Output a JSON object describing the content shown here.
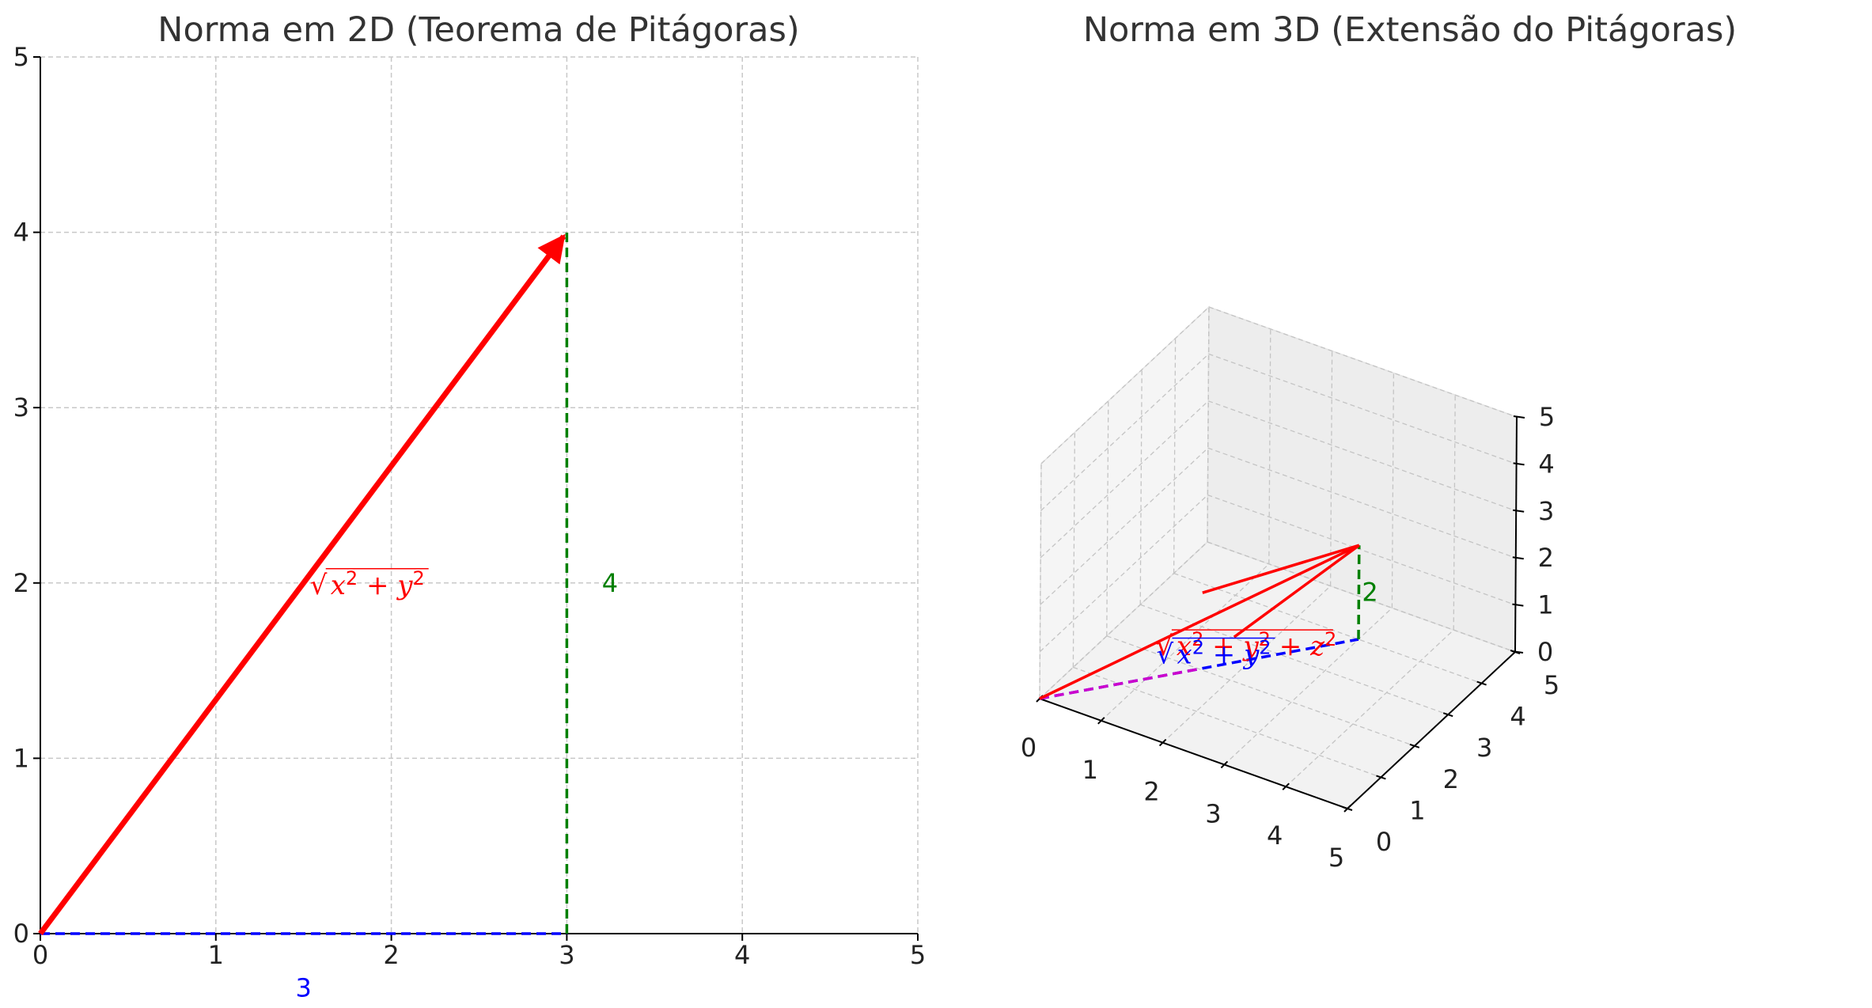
{
  "chart_data": [
    {
      "type": "line",
      "title": "Norma em 2D (Teorema de Pitágoras)",
      "xlim": [
        0,
        5
      ],
      "ylim": [
        0,
        5
      ],
      "xticks": [
        "0",
        "1",
        "2",
        "3",
        "4",
        "5"
      ],
      "yticks": [
        "0",
        "1",
        "2",
        "3",
        "4",
        "5"
      ],
      "grid": true,
      "vector": {
        "from": [
          0,
          0
        ],
        "to": [
          3,
          4
        ],
        "color": "#ff0000"
      },
      "dashed_lines": [
        {
          "from": [
            0,
            0
          ],
          "to": [
            3,
            0
          ],
          "color": "#0000ff"
        },
        {
          "from": [
            3,
            0
          ],
          "to": [
            3,
            4
          ],
          "color": "#008000"
        }
      ],
      "annotations": [
        {
          "text": "3",
          "x": 1.5,
          "y": -0.25,
          "color": "#0000ff"
        },
        {
          "text": "4",
          "x": 3.2,
          "y": 2.0,
          "color": "#008000"
        },
        {
          "text": "√(x² + y²)",
          "x": 1.5,
          "y": 2.0,
          "color": "#ff0000"
        }
      ]
    },
    {
      "type": "line3d",
      "title": "Norma em 3D (Extensão do Pitágoras)",
      "xlim": [
        0,
        5
      ],
      "ylim": [
        0,
        5
      ],
      "zlim": [
        0,
        5
      ],
      "xticks": [
        "0",
        "1",
        "2",
        "3",
        "4",
        "5"
      ],
      "yticks": [
        "0",
        "1",
        "2",
        "3",
        "4",
        "5"
      ],
      "zticks": [
        "0",
        "1",
        "2",
        "3",
        "4",
        "5"
      ],
      "grid": true,
      "vector": {
        "from": [
          0,
          0,
          0
        ],
        "to": [
          3,
          4,
          2
        ],
        "color": "#ff0000"
      },
      "dashed_lines": [
        {
          "from": [
            0,
            0,
            0
          ],
          "to": [
            3,
            4,
            0
          ],
          "color": "#0000ff"
        },
        {
          "from": [
            3,
            4,
            0
          ],
          "to": [
            3,
            4,
            2
          ],
          "color": "#008000"
        },
        {
          "from": [
            0,
            0,
            0
          ],
          "to": [
            1.5,
            2,
            0
          ],
          "color": "#cc00cc"
        }
      ],
      "annotations": [
        {
          "text": "2",
          "color": "#008000"
        },
        {
          "text": "√(x² + y² + z²)",
          "color": "#ff0000"
        },
        {
          "text": "√(x² + y²)",
          "color": "#0000ff"
        }
      ]
    }
  ]
}
